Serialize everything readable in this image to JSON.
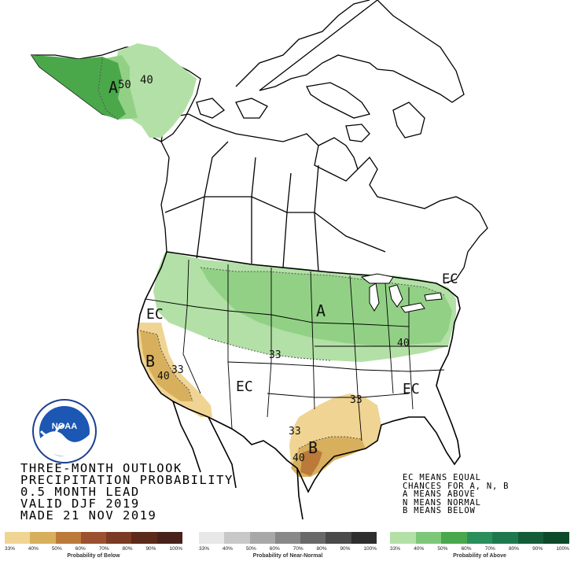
{
  "title_lines": [
    "THREE-MONTH OUTLOOK",
    "PRECIPITATION PROBABILITY",
    "0.5 MONTH LEAD",
    "VALID DJF 2019",
    "MADE 21 NOV 2019"
  ],
  "notes": [
    "EC MEANS EQUAL",
    "CHANCES FOR A, N, B",
    "A MEANS ABOVE",
    "N MEANS NORMAL",
    "B MEANS BELOW"
  ],
  "logo": {
    "text": "NOAA",
    "ring_text": "NATIONAL OCEANIC AND ATMOSPHERIC ADMINISTRATION · U.S. DEPARTMENT OF COMMERCE"
  },
  "map_labels": {
    "alaska_a": "A",
    "alaska_50": "50",
    "alaska_40": "40",
    "west_ec": "EC",
    "central_a": "A",
    "ne_ec": "EC",
    "east_40": "40",
    "central_33": "33",
    "sw_ec": "EC",
    "se_ec": "EC",
    "ca_b": "B",
    "ca_40": "40",
    "ca_33": "33",
    "tx_33a": "33",
    "tx_33b": "33",
    "tx_40": "40",
    "tx_b": "B"
  },
  "scales": [
    {
      "caption": "Probability of Below",
      "ticks": [
        "33%",
        "40%",
        "50%",
        "60%",
        "70%",
        "80%",
        "90%",
        "100%"
      ],
      "colors": [
        "#f0d493",
        "#d8b05d",
        "#bb7a3a",
        "#9b5130",
        "#7b3a23",
        "#5c2a1a",
        "#48211a"
      ]
    },
    {
      "caption": "Probability of Near-Normal",
      "ticks": [
        "33%",
        "40%",
        "50%",
        "60%",
        "70%",
        "80%",
        "90%",
        "100%"
      ],
      "colors": [
        "#e8e8e8",
        "#c8c8c8",
        "#a8a8a8",
        "#888888",
        "#686868",
        "#4a4a4a",
        "#2e2e2e"
      ]
    },
    {
      "caption": "Probability of Above",
      "ticks": [
        "33%",
        "40%",
        "50%",
        "60%",
        "70%",
        "80%",
        "90%",
        "100%"
      ],
      "colors": [
        "#b3e0a6",
        "#7dc779",
        "#49a84b",
        "#2b8f5c",
        "#1e7a4e",
        "#155c39",
        "#0d4a2a"
      ]
    }
  ],
  "colors": {
    "above_33": "#b3e0a6",
    "above_40": "#92d185",
    "above_50": "#4ba84a",
    "below_33": "#f0d493",
    "below_40": "#d8b05d",
    "below_50": "#bb7a3a"
  }
}
